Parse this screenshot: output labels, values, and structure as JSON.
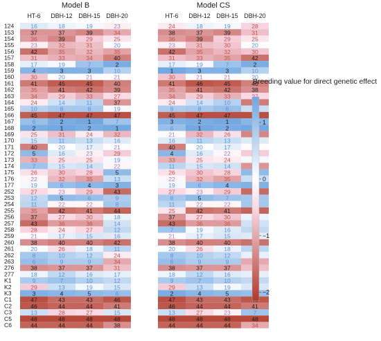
{
  "chart_data": {
    "type": "heatmap",
    "panels": [
      {
        "title": "Model B",
        "columns": [
          "HT-6",
          "DBH-12",
          "DBH-15",
          "DBH-20"
        ]
      },
      {
        "title": "Model CS",
        "columns": [
          "HT-6",
          "DBH-12",
          "DBH-15",
          "DBH-20"
        ]
      }
    ],
    "rows": [
      "124",
      "153",
      "154",
      "155",
      "156",
      "157",
      "158",
      "159",
      "160",
      "161",
      "162",
      "163",
      "164",
      "165",
      "166",
      "167",
      "168",
      "169",
      "170",
      "171",
      "172",
      "173",
      "174",
      "175",
      "176",
      "177",
      "252",
      "253",
      "254",
      "255",
      "256",
      "257",
      "258",
      "259",
      "260",
      "261",
      "262",
      "263",
      "276",
      "277",
      "K1",
      "K2",
      "K3",
      "C1",
      "C2",
      "C3",
      "C5",
      "C6"
    ],
    "ranks": [
      [
        [
          16,
          18,
          19,
          23
        ],
        [
          24,
          18,
          19,
          28
        ]
      ],
      [
        [
          37,
          37,
          39,
          34
        ],
        [
          38,
          37,
          39,
          31
        ]
      ],
      [
        [
          36,
          39,
          29,
          25
        ],
        [
          36,
          39,
          29,
          25
        ]
      ],
      [
        [
          23,
          32,
          31,
          20
        ],
        [
          23,
          31,
          30,
          20
        ]
      ],
      [
        [
          42,
          35,
          32,
          35
        ],
        [
          42,
          35,
          32,
          30
        ]
      ],
      [
        [
          31,
          33,
          34,
          40
        ],
        [
          31,
          33,
          35,
          42
        ]
      ],
      [
        [
          17,
          19,
          7,
          2
        ],
        [
          17,
          19,
          7,
          2
        ]
      ],
      [
        [
          4,
          3,
          3,
          10
        ],
        [
          1,
          3,
          3,
          10
        ]
      ],
      [
        [
          30,
          20,
          21,
          21
        ],
        [
          30,
          21,
          21,
          20
        ]
      ],
      [
        [
          41,
          45,
          45,
          40
        ],
        [
          41,
          46,
          45,
          40
        ]
      ],
      [
        [
          35,
          41,
          42,
          39
        ],
        [
          35,
          41,
          42,
          38
        ]
      ],
      [
        [
          34,
          29,
          33,
          27
        ],
        [
          34,
          29,
          33,
          27
        ]
      ],
      [
        [
          24,
          14,
          11,
          37
        ],
        [
          24,
          14,
          10,
          41
        ]
      ],
      [
        [
          10,
          8,
          8,
          19
        ],
        [
          9,
          8,
          6,
          13
        ]
      ],
      [
        [
          45,
          47,
          47,
          47
        ],
        [
          45,
          47,
          47,
          47
        ]
      ],
      [
        [
          6,
          2,
          1,
          7
        ],
        [
          3,
          2,
          1,
          4
        ]
      ],
      [
        [
          2,
          1,
          2,
          1
        ],
        [
          6,
          1,
          2,
          1
        ]
      ],
      [
        [
          25,
          31,
          24,
          32
        ],
        [
          21,
          32,
          26,
          39
        ]
      ],
      [
        [
          15,
          11,
          13,
          16
        ],
        [
          16,
          11,
          13,
          16
        ]
      ],
      [
        [
          40,
          20,
          17,
          21
        ],
        [
          40,
          20,
          17,
          21
        ]
      ],
      [
        [
          5,
          16,
          23,
          29
        ],
        [
          4,
          16,
          22,
          29
        ]
      ],
      [
        [
          33,
          25,
          25,
          19
        ],
        [
          33,
          25,
          24,
          19
        ]
      ],
      [
        [
          7,
          15,
          14,
          22
        ],
        [
          11,
          15,
          14,
          37
        ]
      ],
      [
        [
          26,
          30,
          28,
          5
        ],
        [
          26,
          30,
          28,
          5
        ]
      ],
      [
        [
          22,
          32,
          35,
          13
        ],
        [
          22,
          32,
          35,
          13
        ]
      ],
      [
        [
          19,
          6,
          4,
          3
        ],
        [
          19,
          6,
          4,
          3
        ]
      ],
      [
        [
          27,
          23,
          29,
          43
        ],
        [
          27,
          23,
          29,
          43
        ]
      ],
      [
        [
          12,
          5,
          6,
          9
        ],
        [
          8,
          5,
          7,
          8
        ]
      ],
      [
        [
          11,
          22,
          22,
          8
        ],
        [
          11,
          22,
          22,
          8
        ]
      ],
      [
        [
          35,
          42,
          41,
          44
        ],
        [
          25,
          42,
          41,
          44
        ]
      ],
      [
        [
          37,
          27,
          30,
          18
        ],
        [
          37,
          27,
          30,
          18
        ]
      ],
      [
        [
          43,
          36,
          36,
          14
        ],
        [
          43,
          36,
          36,
          14
        ]
      ],
      [
        [
          28,
          24,
          27,
          12
        ],
        [
          7,
          19,
          16,
          12
        ]
      ],
      [
        [
          21,
          17,
          15,
          16
        ],
        [
          21,
          17,
          15,
          16
        ]
      ],
      [
        [
          38,
          40,
          40,
          42
        ],
        [
          38,
          40,
          40,
          42
        ]
      ],
      [
        [
          20,
          26,
          18,
          11
        ],
        [
          20,
          26,
          18,
          11
        ]
      ],
      [
        [
          8,
          10,
          12,
          24
        ],
        [
          8,
          10,
          12,
          17
        ]
      ],
      [
        [
          6,
          9,
          9,
          34
        ],
        [
          6,
          9,
          9,
          34
        ]
      ],
      [
        [
          38,
          37,
          37,
          31
        ],
        [
          38,
          37,
          37,
          31
        ]
      ],
      [
        [
          18,
          12,
          16,
          17
        ],
        [
          18,
          12,
          16,
          17
        ]
      ],
      [
        [
          9,
          7,
          10,
          12
        ],
        [
          9,
          7,
          10,
          12
        ]
      ],
      [
        [
          29,
          13,
          19,
          15
        ],
        [
          29,
          13,
          19,
          15
        ]
      ],
      [
        [
          3,
          4,
          5,
          6
        ],
        [
          2,
          4,
          5,
          6
        ]
      ],
      [
        [
          47,
          43,
          43,
          46
        ],
        [
          47,
          43,
          43,
          46
        ]
      ],
      [
        [
          46,
          44,
          44,
          41
        ],
        [
          46,
          44,
          44,
          41
        ]
      ],
      [
        [
          13,
          28,
          27,
          15
        ],
        [
          13,
          27,
          23,
          7
        ]
      ],
      [
        [
          48,
          48,
          48,
          48
        ],
        [
          48,
          48,
          48,
          48
        ]
      ],
      [
        [
          44,
          44,
          44,
          38
        ],
        [
          44,
          44,
          44,
          34
        ]
      ]
    ],
    "legend": {
      "title": "Breeding value for direct genetic effect",
      "ticks": [
        "1",
        "0",
        "−1",
        "−2"
      ],
      "tick_values": [
        1,
        0,
        -1,
        -2
      ],
      "range": [
        -2.15,
        1.45
      ],
      "placement": "right"
    },
    "colors": {
      "high": "#6fa5e0",
      "zero": "#ffffff",
      "pink": "#f9d6e2",
      "low": "#b03a2a"
    }
  }
}
